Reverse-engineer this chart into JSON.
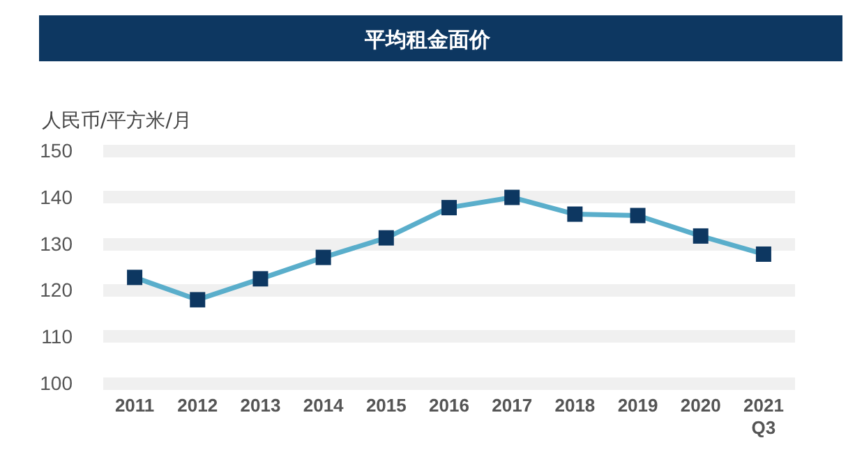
{
  "chart_data": {
    "type": "line",
    "title": "平均租金面价",
    "ylabel": "人民币/平方米/月",
    "categories": [
      "2011",
      "2012",
      "2013",
      "2014",
      "2015",
      "2016",
      "2017",
      "2018",
      "2019",
      "2020",
      "2021\nQ3"
    ],
    "series": [
      {
        "color": "#5aaecb",
        "values": [
          122.7,
          117.9,
          122.4,
          127,
          131.2,
          137.7,
          139.9,
          136.3,
          136,
          131.6,
          127.7
        ]
      }
    ],
    "marker": "square",
    "ylim": [
      100,
      150
    ],
    "yticks": [
      100,
      110,
      120,
      130,
      140,
      150
    ],
    "grid": "y"
  }
}
